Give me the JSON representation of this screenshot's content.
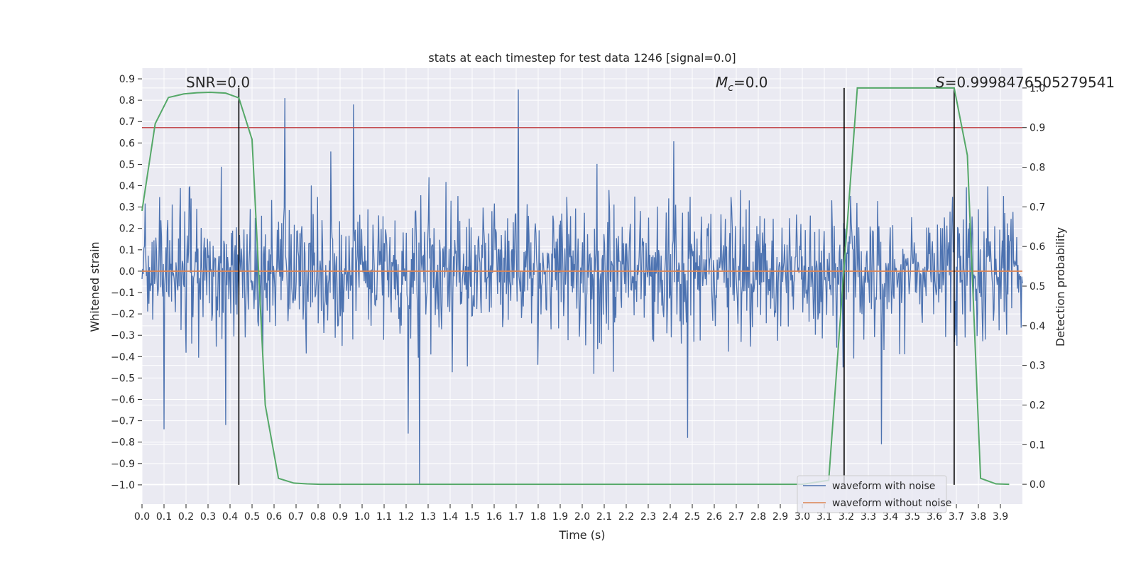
{
  "chart_data": {
    "type": "line",
    "title": "stats at each timestep for test data 1246 [signal=0.0]",
    "xlabel": "Time (s)",
    "ylabel": "Whitened strain",
    "y2label": "Detection probability",
    "xlim": [
      0.0,
      4.0
    ],
    "ylim": [
      -1.09,
      0.95
    ],
    "y2lim": [
      -0.05,
      1.05
    ],
    "x_ticks": [
      "0.0",
      "0.1",
      "0.2",
      "0.3",
      "0.4",
      "0.5",
      "0.6",
      "0.7",
      "0.8",
      "0.9",
      "1.0",
      "1.1",
      "1.2",
      "1.3",
      "1.4",
      "1.5",
      "1.6",
      "1.7",
      "1.8",
      "1.9",
      "2.0",
      "2.1",
      "2.2",
      "2.3",
      "2.4",
      "2.5",
      "2.6",
      "2.7",
      "2.8",
      "2.9",
      "3.0",
      "3.1",
      "3.2",
      "3.3",
      "3.4",
      "3.5",
      "3.6",
      "3.7",
      "3.8",
      "3.9"
    ],
    "y_ticks": [
      "0.9",
      "0.8",
      "0.7",
      "0.6",
      "0.5",
      "0.4",
      "0.3",
      "0.2",
      "0.1",
      "0.0",
      "−0.1",
      "−0.2",
      "−0.3",
      "−0.4",
      "−0.5",
      "−0.6",
      "−0.7",
      "−0.8",
      "−0.9",
      "−1.0"
    ],
    "y2_ticks": [
      "1.0",
      "0.9",
      "0.8",
      "0.7",
      "0.6",
      "0.5",
      "0.4",
      "0.3",
      "0.2",
      "0.1",
      "0.0"
    ],
    "grid": true,
    "background_color": "#eaeaf2",
    "annotations": {
      "snr": "SNR=0.0",
      "mc_symbol": "M",
      "mc_sub": "c",
      "mc_value": "=0.0",
      "s_symbol": "S",
      "s_value": "=0.9998476505279541"
    },
    "threshold_y2": 0.9,
    "vertical_lines_x": [
      0.44,
      3.19,
      3.69
    ],
    "vertical_lines_ymin": -1.0,
    "series": [
      {
        "name": "waveform with noise",
        "color": "#4c72b0",
        "kind": "noise",
        "seed": 1246,
        "n_points": 1400,
        "sigma": 0.16,
        "clip": [
          -1.0,
          0.86
        ],
        "spikes": [
          {
            "x": 1.71,
            "y": 0.85
          },
          {
            "x": 1.26,
            "y": -1.0
          },
          {
            "x": 0.65,
            "y": 0.81
          },
          {
            "x": 0.38,
            "y": -0.72
          },
          {
            "x": 3.36,
            "y": -0.81
          },
          {
            "x": 2.48,
            "y": -0.78
          },
          {
            "x": 0.1,
            "y": -0.74
          },
          {
            "x": 1.21,
            "y": -0.76
          },
          {
            "x": 0.96,
            "y": 0.78
          }
        ]
      },
      {
        "name": "waveform without noise",
        "color": "#dd8452",
        "kind": "constant",
        "y": 0.0
      },
      {
        "name": "detection probability",
        "color": "#55a868",
        "axis": "y2",
        "x": [
          0.0,
          0.06,
          0.12,
          0.19,
          0.25,
          0.31,
          0.38,
          0.44,
          0.5,
          0.56,
          0.62,
          0.69,
          0.75,
          0.81,
          1.0,
          2.0,
          3.0,
          3.12,
          3.19,
          3.25,
          3.31,
          3.38,
          3.5,
          3.62,
          3.69,
          3.75,
          3.81,
          3.88,
          3.94
        ],
        "y": [
          0.69,
          0.91,
          0.976,
          0.985,
          0.988,
          0.989,
          0.987,
          0.975,
          0.87,
          0.2,
          0.015,
          0.003,
          0.001,
          0.0,
          0.0,
          0.0,
          0.0,
          0.01,
          0.55,
          1.0,
          1.0,
          1.0,
          1.0,
          1.0,
          1.0,
          0.83,
          0.015,
          0.001,
          0.0
        ]
      },
      {
        "name": "threshold",
        "color": "#c44e52",
        "axis": "y2",
        "kind": "hline",
        "y": 0.9
      }
    ],
    "legend": {
      "placement": "bottom-right",
      "entries": [
        "waveform with noise",
        "waveform without noise"
      ]
    }
  }
}
